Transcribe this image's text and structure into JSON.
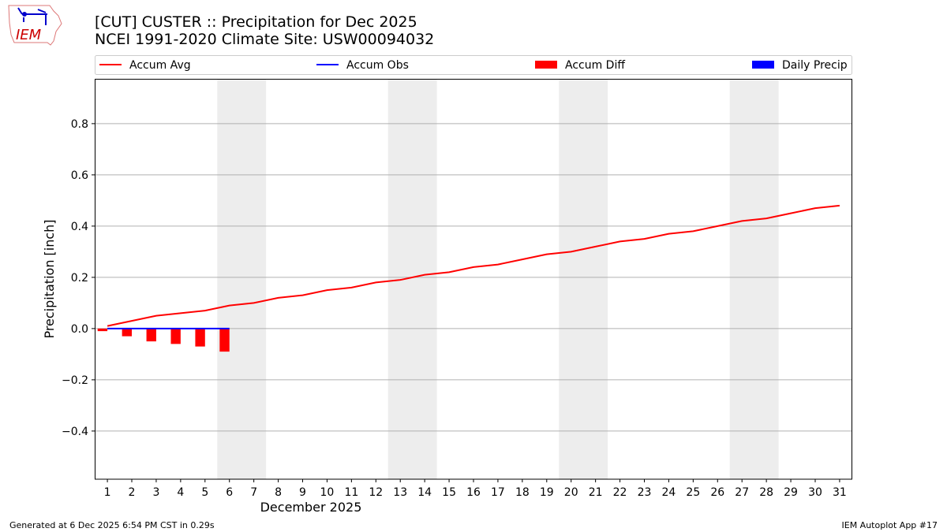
{
  "header": {
    "title_line1": "[CUT] CUSTER :: Precipitation for Dec 2025",
    "title_line2": "NCEI 1991-2020 Climate Site: USW00094032",
    "logo_text": "IEM"
  },
  "footer": {
    "left": "Generated at 6 Dec 2025 6:54 PM CST in 0.29s",
    "right": "IEM Autoplot App #17"
  },
  "chart_data": {
    "type": "line+bar",
    "xlabel": "December 2025",
    "ylabel": "Precipitation [inch]",
    "xlim": [
      0.48,
      31.52
    ],
    "ylim": [
      -0.588,
      0.975
    ],
    "yticks": [
      -0.4,
      -0.2,
      0.0,
      0.2,
      0.4,
      0.6,
      0.8
    ],
    "ytick_labels": [
      "−0.4",
      "−0.2",
      "0.0",
      "0.2",
      "0.4",
      "0.6",
      "0.8"
    ],
    "x": [
      1,
      2,
      3,
      4,
      5,
      6,
      7,
      8,
      9,
      10,
      11,
      12,
      13,
      14,
      15,
      16,
      17,
      18,
      19,
      20,
      21,
      22,
      23,
      24,
      25,
      26,
      27,
      28,
      29,
      30,
      31
    ],
    "xtick_labels": [
      "1",
      "2",
      "3",
      "4",
      "5",
      "6",
      "7",
      "8",
      "9",
      "10",
      "11",
      "12",
      "13",
      "14",
      "15",
      "16",
      "17",
      "18",
      "19",
      "20",
      "21",
      "22",
      "23",
      "24",
      "25",
      "26",
      "27",
      "28",
      "29",
      "30",
      "31"
    ],
    "grid": "y",
    "legend_position": "top, above plot",
    "weekend_bands": [
      [
        5.5,
        7.5
      ],
      [
        12.5,
        14.5
      ],
      [
        19.5,
        21.5
      ],
      [
        26.5,
        28.5
      ]
    ],
    "series": [
      {
        "name": "Accum Avg",
        "type": "line",
        "color": "#ff0000",
        "x": [
          1,
          2,
          3,
          4,
          5,
          6,
          7,
          8,
          9,
          10,
          11,
          12,
          13,
          14,
          15,
          16,
          17,
          18,
          19,
          20,
          21,
          22,
          23,
          24,
          25,
          26,
          27,
          28,
          29,
          30,
          31
        ],
        "values": [
          0.01,
          0.03,
          0.05,
          0.06,
          0.07,
          0.09,
          0.1,
          0.12,
          0.13,
          0.15,
          0.16,
          0.18,
          0.19,
          0.21,
          0.22,
          0.24,
          0.25,
          0.27,
          0.29,
          0.3,
          0.32,
          0.34,
          0.35,
          0.37,
          0.38,
          0.4,
          0.42,
          0.43,
          0.45,
          0.47,
          0.48
        ]
      },
      {
        "name": "Accum Obs",
        "type": "line",
        "color": "#0000ff",
        "x": [
          1,
          2,
          3,
          4,
          5,
          6
        ],
        "values": [
          0,
          0,
          0,
          0,
          0,
          0
        ]
      },
      {
        "name": "Accum Diff",
        "type": "bar",
        "color": "#ff0000",
        "x": [
          1,
          2,
          3,
          4,
          5,
          6
        ],
        "values": [
          -0.01,
          -0.03,
          -0.05,
          -0.06,
          -0.07,
          -0.09
        ]
      },
      {
        "name": "Daily Precip",
        "type": "bar",
        "color": "#0000ff",
        "x": [
          1,
          2,
          3,
          4,
          5,
          6
        ],
        "values": [
          0,
          0,
          0,
          0,
          0,
          0
        ]
      }
    ]
  }
}
